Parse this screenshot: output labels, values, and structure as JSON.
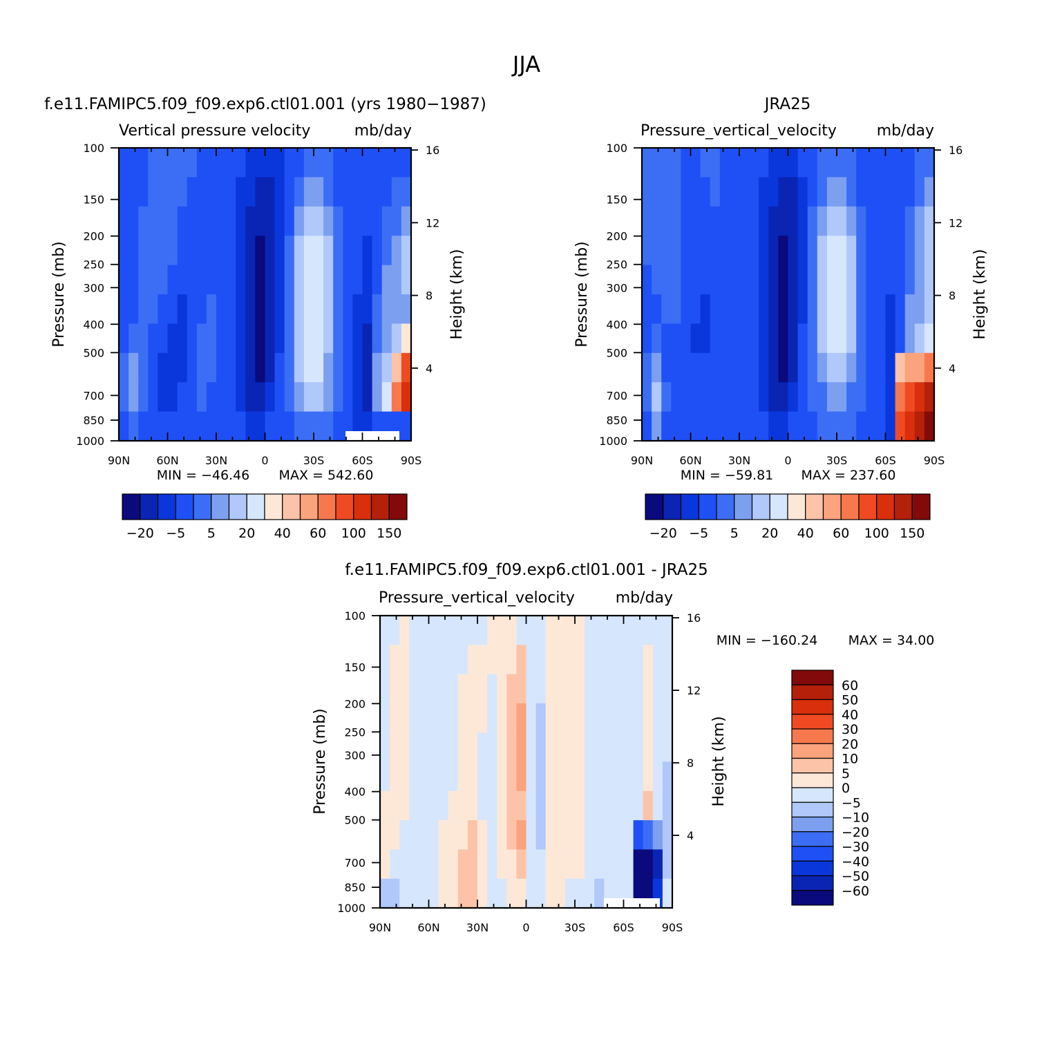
{
  "title": "JJA",
  "colors": {
    "fill_scale": [
      "#0a0a7d",
      "#0a24b4",
      "#0a37dc",
      "#1e50f5",
      "#3c6ef5",
      "#7d9ff0",
      "#b0c8fa",
      "#d6e6fc",
      "#fde8d8",
      "#fcc3a8",
      "#fba37c",
      "#f8784e",
      "#f04a23",
      "#d92f0c",
      "#b4200a",
      "#820a0a"
    ],
    "diff_scale": [
      "#0a0a7d",
      "#0a24b4",
      "#0a37dc",
      "#1e50f5",
      "#3c6ef5",
      "#7d9ff0",
      "#b0c8fa",
      "#d6e6fc",
      "#fde8d8",
      "#fcc3a8",
      "#fba37c",
      "#f8784e",
      "#f04a23",
      "#d92f0c",
      "#b4200a",
      "#820a0a"
    ]
  },
  "chart_data": [
    {
      "type": "heatmap",
      "title": "f.e11.FAMIPC5.f09_f09.exp6.ctl01.001 (yrs 1980-1987)",
      "subtitle_left": "Vertical pressure velocity",
      "subtitle_right": "mb/day",
      "xlabel": "",
      "ylabel": "Pressure (mb)",
      "y2label": "Height (km)",
      "x_ticks": [
        "90N",
        "60N",
        "30N",
        "0",
        "30S",
        "60S",
        "90S"
      ],
      "y_ticks": [
        100,
        150,
        200,
        250,
        300,
        400,
        500,
        700,
        850,
        1000
      ],
      "y2_ticks": [
        16,
        12,
        8,
        4
      ],
      "min_text": "MIN = -46.46",
      "max_text": "MAX = 542.60",
      "colorbar_labels": [
        "-20",
        "-5",
        "5",
        "20",
        "40",
        "60",
        "100",
        "150"
      ],
      "field": [
        [
          3,
          3,
          3,
          4,
          4,
          4,
          4,
          4,
          3,
          3,
          3,
          3,
          3,
          2,
          2,
          2,
          2,
          3,
          3,
          4,
          4,
          4,
          3,
          3,
          3,
          3,
          3,
          3,
          3,
          3
        ],
        [
          3,
          3,
          3,
          4,
          4,
          4,
          4,
          3,
          3,
          3,
          3,
          3,
          2,
          2,
          1,
          1,
          2,
          3,
          4,
          5,
          5,
          4,
          3,
          3,
          3,
          3,
          3,
          3,
          4,
          4
        ],
        [
          3,
          3,
          4,
          4,
          4,
          4,
          3,
          3,
          3,
          3,
          3,
          3,
          2,
          1,
          1,
          1,
          2,
          3,
          5,
          6,
          6,
          5,
          4,
          3,
          3,
          3,
          3,
          4,
          4,
          5
        ],
        [
          3,
          3,
          4,
          4,
          4,
          4,
          3,
          3,
          3,
          3,
          3,
          3,
          2,
          1,
          0,
          1,
          2,
          4,
          6,
          7,
          7,
          6,
          4,
          3,
          3,
          2,
          3,
          4,
          5,
          6
        ],
        [
          3,
          3,
          4,
          4,
          4,
          3,
          3,
          3,
          3,
          3,
          3,
          3,
          2,
          1,
          0,
          1,
          2,
          4,
          6,
          7,
          7,
          6,
          4,
          3,
          3,
          2,
          3,
          5,
          5,
          6
        ],
        [
          3,
          3,
          4,
          4,
          3,
          3,
          2,
          3,
          3,
          4,
          3,
          3,
          2,
          1,
          0,
          1,
          2,
          4,
          6,
          7,
          7,
          6,
          4,
          3,
          2,
          2,
          4,
          5,
          5,
          5
        ],
        [
          3,
          4,
          4,
          3,
          3,
          2,
          2,
          3,
          4,
          4,
          3,
          3,
          2,
          1,
          0,
          1,
          2,
          4,
          6,
          7,
          7,
          6,
          4,
          3,
          2,
          1,
          4,
          5,
          6,
          8
        ],
        [
          4,
          5,
          4,
          3,
          2,
          2,
          2,
          3,
          4,
          4,
          3,
          3,
          2,
          1,
          0,
          1,
          3,
          4,
          6,
          7,
          7,
          5,
          4,
          3,
          2,
          1,
          5,
          6,
          9,
          12
        ],
        [
          4,
          5,
          4,
          3,
          2,
          2,
          3,
          3,
          4,
          3,
          3,
          3,
          2,
          1,
          1,
          2,
          3,
          4,
          5,
          6,
          6,
          5,
          4,
          3,
          2,
          1,
          5,
          7,
          11,
          13
        ],
        [
          3,
          4,
          3,
          3,
          3,
          3,
          3,
          3,
          3,
          3,
          3,
          3,
          3,
          2,
          2,
          3,
          3,
          3,
          4,
          4,
          4,
          4,
          3,
          3,
          2,
          2,
          3,
          3,
          3,
          3
        ]
      ],
      "missing_region": "lower-right (60S-85S, near 1000 mb)"
    },
    {
      "type": "heatmap",
      "title": "JRA25",
      "subtitle_left": "Pressure_vertical_velocity",
      "subtitle_right": "mb/day",
      "xlabel": "",
      "ylabel": "Pressure (mb)",
      "y2label": "Height (km)",
      "x_ticks": [
        "90N",
        "60N",
        "30N",
        "0",
        "30S",
        "60S",
        "90S"
      ],
      "y_ticks": [
        100,
        150,
        200,
        250,
        300,
        400,
        500,
        700,
        850,
        1000
      ],
      "y2_ticks": [
        16,
        12,
        8,
        4
      ],
      "min_text": "MIN = -59.81",
      "max_text": "MAX = 237.60",
      "colorbar_labels": [
        "-20",
        "-5",
        "5",
        "20",
        "40",
        "60",
        "100",
        "150"
      ],
      "field": [
        [
          4,
          4,
          4,
          4,
          3,
          3,
          4,
          4,
          3,
          3,
          3,
          3,
          3,
          2,
          2,
          2,
          3,
          3,
          4,
          4,
          4,
          4,
          3,
          3,
          3,
          3,
          3,
          3,
          4,
          4
        ],
        [
          4,
          4,
          4,
          4,
          3,
          3,
          3,
          4,
          3,
          3,
          3,
          3,
          2,
          2,
          1,
          1,
          2,
          3,
          4,
          5,
          5,
          4,
          3,
          3,
          3,
          3,
          3,
          3,
          4,
          5
        ],
        [
          4,
          4,
          4,
          4,
          3,
          3,
          3,
          3,
          3,
          3,
          3,
          3,
          2,
          1,
          1,
          1,
          2,
          4,
          5,
          6,
          6,
          5,
          4,
          3,
          3,
          3,
          3,
          4,
          5,
          6
        ],
        [
          4,
          4,
          4,
          4,
          3,
          3,
          3,
          3,
          3,
          3,
          3,
          3,
          2,
          1,
          0,
          1,
          2,
          4,
          6,
          7,
          7,
          6,
          4,
          3,
          3,
          3,
          3,
          4,
          5,
          6
        ],
        [
          3,
          4,
          4,
          4,
          3,
          3,
          3,
          3,
          3,
          3,
          3,
          3,
          2,
          1,
          0,
          1,
          2,
          4,
          6,
          7,
          7,
          6,
          4,
          3,
          3,
          3,
          3,
          4,
          5,
          6
        ],
        [
          3,
          3,
          4,
          4,
          3,
          3,
          2,
          3,
          3,
          3,
          3,
          3,
          2,
          1,
          0,
          1,
          2,
          4,
          6,
          7,
          7,
          6,
          4,
          3,
          3,
          2,
          3,
          5,
          5,
          6
        ],
        [
          3,
          4,
          3,
          3,
          3,
          2,
          2,
          3,
          3,
          3,
          3,
          3,
          2,
          1,
          0,
          1,
          3,
          4,
          6,
          7,
          7,
          6,
          4,
          3,
          3,
          2,
          3,
          5,
          6,
          7
        ],
        [
          4,
          5,
          3,
          3,
          3,
          3,
          3,
          3,
          3,
          3,
          3,
          3,
          2,
          1,
          0,
          1,
          3,
          4,
          5,
          6,
          6,
          5,
          4,
          3,
          3,
          2,
          9,
          10,
          10,
          11
        ],
        [
          4,
          6,
          4,
          3,
          3,
          3,
          3,
          3,
          3,
          3,
          3,
          3,
          2,
          1,
          1,
          2,
          3,
          4,
          4,
          5,
          5,
          4,
          4,
          3,
          3,
          2,
          11,
          12,
          13,
          14
        ],
        [
          3,
          5,
          3,
          3,
          3,
          3,
          3,
          3,
          3,
          3,
          3,
          3,
          3,
          2,
          2,
          3,
          3,
          3,
          4,
          4,
          4,
          4,
          3,
          3,
          3,
          2,
          12,
          13,
          14,
          15
        ]
      ]
    },
    {
      "type": "heatmap",
      "title": "f.e11.FAMIPC5.f09_f09.exp6.ctl01.001 - JRA25",
      "subtitle_left": "Pressure_vertical_velocity",
      "subtitle_right": "mb/day",
      "xlabel": "",
      "ylabel": "Pressure (mb)",
      "y2label": "Height (km)",
      "x_ticks": [
        "90N",
        "60N",
        "30N",
        "0",
        "30S",
        "60S",
        "90S"
      ],
      "y_ticks": [
        100,
        150,
        200,
        250,
        300,
        400,
        500,
        700,
        850,
        1000
      ],
      "y2_ticks": [
        16,
        12,
        8,
        4
      ],
      "min_text": "MIN = -160.24",
      "max_text": "MAX =   34.00",
      "colorbar_labels": [
        "60",
        "50",
        "40",
        "30",
        "20",
        "10",
        "5",
        "0",
        "-5",
        "-10",
        "-20",
        "-30",
        "-40",
        "-50",
        "-60"
      ],
      "field": [
        [
          7,
          7,
          8,
          7,
          7,
          7,
          7,
          7,
          7,
          7,
          7,
          8,
          8,
          8,
          7,
          7,
          7,
          8,
          8,
          8,
          8,
          7,
          7,
          7,
          7,
          7,
          7,
          7,
          7,
          7
        ],
        [
          7,
          8,
          8,
          7,
          7,
          7,
          7,
          7,
          7,
          8,
          8,
          8,
          8,
          8,
          9,
          7,
          7,
          8,
          8,
          8,
          8,
          7,
          7,
          7,
          7,
          7,
          7,
          8,
          7,
          7
        ],
        [
          7,
          8,
          8,
          7,
          7,
          7,
          7,
          7,
          8,
          8,
          8,
          7,
          8,
          9,
          9,
          7,
          7,
          8,
          8,
          8,
          8,
          7,
          7,
          7,
          7,
          7,
          7,
          8,
          7,
          7
        ],
        [
          7,
          8,
          8,
          7,
          7,
          7,
          7,
          7,
          8,
          8,
          8,
          7,
          8,
          9,
          10,
          7,
          6,
          8,
          8,
          8,
          8,
          7,
          7,
          7,
          7,
          7,
          7,
          8,
          7,
          7
        ],
        [
          7,
          8,
          8,
          7,
          7,
          7,
          7,
          7,
          8,
          8,
          7,
          7,
          8,
          9,
          10,
          7,
          6,
          8,
          8,
          8,
          8,
          7,
          7,
          7,
          7,
          7,
          7,
          8,
          7,
          7
        ],
        [
          7,
          8,
          8,
          7,
          7,
          7,
          7,
          7,
          8,
          8,
          7,
          7,
          8,
          9,
          10,
          7,
          6,
          8,
          8,
          8,
          8,
          7,
          7,
          7,
          7,
          7,
          7,
          8,
          7,
          6
        ],
        [
          8,
          8,
          8,
          7,
          7,
          7,
          7,
          8,
          8,
          8,
          7,
          7,
          8,
          9,
          9,
          7,
          6,
          8,
          8,
          8,
          8,
          7,
          7,
          7,
          7,
          7,
          7,
          9,
          7,
          6
        ],
        [
          8,
          8,
          7,
          7,
          7,
          7,
          8,
          8,
          8,
          9,
          8,
          7,
          8,
          9,
          10,
          7,
          6,
          8,
          8,
          8,
          8,
          7,
          7,
          7,
          7,
          7,
          3,
          4,
          5,
          6
        ],
        [
          8,
          7,
          7,
          7,
          7,
          7,
          8,
          8,
          9,
          9,
          8,
          7,
          8,
          8,
          9,
          7,
          7,
          8,
          8,
          8,
          8,
          7,
          7,
          7,
          7,
          7,
          0,
          0,
          1,
          6
        ],
        [
          6,
          6,
          7,
          7,
          7,
          7,
          8,
          8,
          9,
          9,
          8,
          7,
          7,
          8,
          8,
          7,
          7,
          8,
          8,
          7,
          7,
          7,
          6,
          7,
          7,
          7,
          0,
          0,
          2,
          7
        ]
      ],
      "missing_region": "lower-right (55S-85S, near 1000 mb)"
    }
  ]
}
